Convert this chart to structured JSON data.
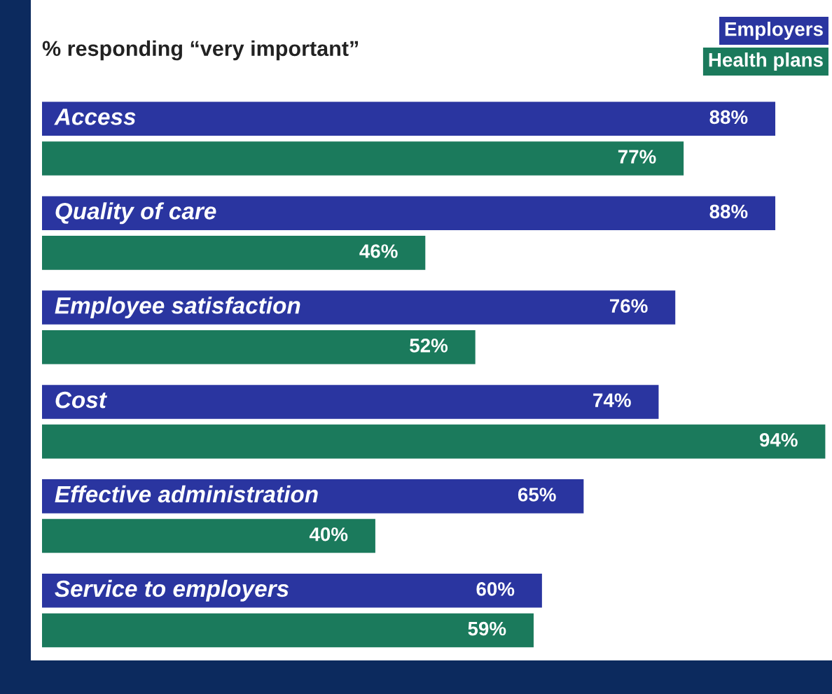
{
  "chart_data": {
    "type": "bar",
    "orientation": "horizontal",
    "title": "% responding “very important”",
    "categories": [
      "Access",
      "Quality of care",
      "Employee satisfaction",
      "Cost",
      "Effective administration",
      "Service to employers"
    ],
    "series": [
      {
        "name": "Employers",
        "color": "#2a35a0",
        "values": [
          88,
          88,
          76,
          74,
          65,
          60
        ],
        "value_labels": [
          "88%",
          "88%",
          "76%",
          "74%",
          "65%",
          "60%"
        ]
      },
      {
        "name": "Health plans",
        "color": "#1b7a5c",
        "values": [
          77,
          46,
          52,
          94,
          40,
          59
        ],
        "value_labels": [
          "77%",
          "46%",
          "52%",
          "94%",
          "40%",
          "59%"
        ]
      }
    ],
    "legend": "top right"
  }
}
